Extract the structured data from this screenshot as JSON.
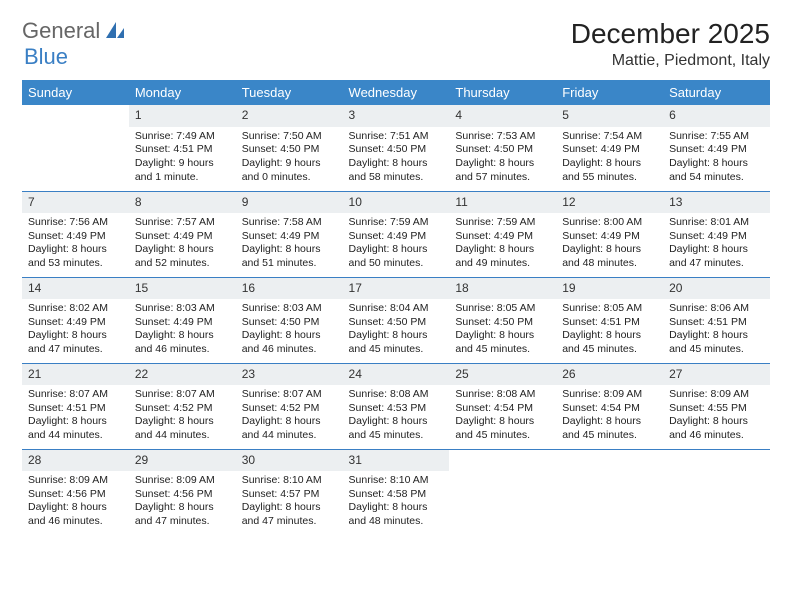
{
  "logo": {
    "text1": "General",
    "text2": "Blue"
  },
  "title": "December 2025",
  "subtitle": "Mattie, Piedmont, Italy",
  "colors": {
    "header_bg": "#3a86c8",
    "header_fg": "#ffffff",
    "daynum_bg": "#eceff1",
    "rule": "#3a7fc4",
    "logo_blue": "#3a7fc4",
    "logo_gray": "#666666"
  },
  "day_headers": [
    "Sunday",
    "Monday",
    "Tuesday",
    "Wednesday",
    "Thursday",
    "Friday",
    "Saturday"
  ],
  "weeks": [
    [
      {
        "n": "",
        "sr": "",
        "ss": "",
        "dl": ""
      },
      {
        "n": "1",
        "sr": "Sunrise: 7:49 AM",
        "ss": "Sunset: 4:51 PM",
        "dl": "Daylight: 9 hours and 1 minute."
      },
      {
        "n": "2",
        "sr": "Sunrise: 7:50 AM",
        "ss": "Sunset: 4:50 PM",
        "dl": "Daylight: 9 hours and 0 minutes."
      },
      {
        "n": "3",
        "sr": "Sunrise: 7:51 AM",
        "ss": "Sunset: 4:50 PM",
        "dl": "Daylight: 8 hours and 58 minutes."
      },
      {
        "n": "4",
        "sr": "Sunrise: 7:53 AM",
        "ss": "Sunset: 4:50 PM",
        "dl": "Daylight: 8 hours and 57 minutes."
      },
      {
        "n": "5",
        "sr": "Sunrise: 7:54 AM",
        "ss": "Sunset: 4:49 PM",
        "dl": "Daylight: 8 hours and 55 minutes."
      },
      {
        "n": "6",
        "sr": "Sunrise: 7:55 AM",
        "ss": "Sunset: 4:49 PM",
        "dl": "Daylight: 8 hours and 54 minutes."
      }
    ],
    [
      {
        "n": "7",
        "sr": "Sunrise: 7:56 AM",
        "ss": "Sunset: 4:49 PM",
        "dl": "Daylight: 8 hours and 53 minutes."
      },
      {
        "n": "8",
        "sr": "Sunrise: 7:57 AM",
        "ss": "Sunset: 4:49 PM",
        "dl": "Daylight: 8 hours and 52 minutes."
      },
      {
        "n": "9",
        "sr": "Sunrise: 7:58 AM",
        "ss": "Sunset: 4:49 PM",
        "dl": "Daylight: 8 hours and 51 minutes."
      },
      {
        "n": "10",
        "sr": "Sunrise: 7:59 AM",
        "ss": "Sunset: 4:49 PM",
        "dl": "Daylight: 8 hours and 50 minutes."
      },
      {
        "n": "11",
        "sr": "Sunrise: 7:59 AM",
        "ss": "Sunset: 4:49 PM",
        "dl": "Daylight: 8 hours and 49 minutes."
      },
      {
        "n": "12",
        "sr": "Sunrise: 8:00 AM",
        "ss": "Sunset: 4:49 PM",
        "dl": "Daylight: 8 hours and 48 minutes."
      },
      {
        "n": "13",
        "sr": "Sunrise: 8:01 AM",
        "ss": "Sunset: 4:49 PM",
        "dl": "Daylight: 8 hours and 47 minutes."
      }
    ],
    [
      {
        "n": "14",
        "sr": "Sunrise: 8:02 AM",
        "ss": "Sunset: 4:49 PM",
        "dl": "Daylight: 8 hours and 47 minutes."
      },
      {
        "n": "15",
        "sr": "Sunrise: 8:03 AM",
        "ss": "Sunset: 4:49 PM",
        "dl": "Daylight: 8 hours and 46 minutes."
      },
      {
        "n": "16",
        "sr": "Sunrise: 8:03 AM",
        "ss": "Sunset: 4:50 PM",
        "dl": "Daylight: 8 hours and 46 minutes."
      },
      {
        "n": "17",
        "sr": "Sunrise: 8:04 AM",
        "ss": "Sunset: 4:50 PM",
        "dl": "Daylight: 8 hours and 45 minutes."
      },
      {
        "n": "18",
        "sr": "Sunrise: 8:05 AM",
        "ss": "Sunset: 4:50 PM",
        "dl": "Daylight: 8 hours and 45 minutes."
      },
      {
        "n": "19",
        "sr": "Sunrise: 8:05 AM",
        "ss": "Sunset: 4:51 PM",
        "dl": "Daylight: 8 hours and 45 minutes."
      },
      {
        "n": "20",
        "sr": "Sunrise: 8:06 AM",
        "ss": "Sunset: 4:51 PM",
        "dl": "Daylight: 8 hours and 45 minutes."
      }
    ],
    [
      {
        "n": "21",
        "sr": "Sunrise: 8:07 AM",
        "ss": "Sunset: 4:51 PM",
        "dl": "Daylight: 8 hours and 44 minutes."
      },
      {
        "n": "22",
        "sr": "Sunrise: 8:07 AM",
        "ss": "Sunset: 4:52 PM",
        "dl": "Daylight: 8 hours and 44 minutes."
      },
      {
        "n": "23",
        "sr": "Sunrise: 8:07 AM",
        "ss": "Sunset: 4:52 PM",
        "dl": "Daylight: 8 hours and 44 minutes."
      },
      {
        "n": "24",
        "sr": "Sunrise: 8:08 AM",
        "ss": "Sunset: 4:53 PM",
        "dl": "Daylight: 8 hours and 45 minutes."
      },
      {
        "n": "25",
        "sr": "Sunrise: 8:08 AM",
        "ss": "Sunset: 4:54 PM",
        "dl": "Daylight: 8 hours and 45 minutes."
      },
      {
        "n": "26",
        "sr": "Sunrise: 8:09 AM",
        "ss": "Sunset: 4:54 PM",
        "dl": "Daylight: 8 hours and 45 minutes."
      },
      {
        "n": "27",
        "sr": "Sunrise: 8:09 AM",
        "ss": "Sunset: 4:55 PM",
        "dl": "Daylight: 8 hours and 46 minutes."
      }
    ],
    [
      {
        "n": "28",
        "sr": "Sunrise: 8:09 AM",
        "ss": "Sunset: 4:56 PM",
        "dl": "Daylight: 8 hours and 46 minutes."
      },
      {
        "n": "29",
        "sr": "Sunrise: 8:09 AM",
        "ss": "Sunset: 4:56 PM",
        "dl": "Daylight: 8 hours and 47 minutes."
      },
      {
        "n": "30",
        "sr": "Sunrise: 8:10 AM",
        "ss": "Sunset: 4:57 PM",
        "dl": "Daylight: 8 hours and 47 minutes."
      },
      {
        "n": "31",
        "sr": "Sunrise: 8:10 AM",
        "ss": "Sunset: 4:58 PM",
        "dl": "Daylight: 8 hours and 48 minutes."
      },
      {
        "n": "",
        "sr": "",
        "ss": "",
        "dl": ""
      },
      {
        "n": "",
        "sr": "",
        "ss": "",
        "dl": ""
      },
      {
        "n": "",
        "sr": "",
        "ss": "",
        "dl": ""
      }
    ]
  ]
}
